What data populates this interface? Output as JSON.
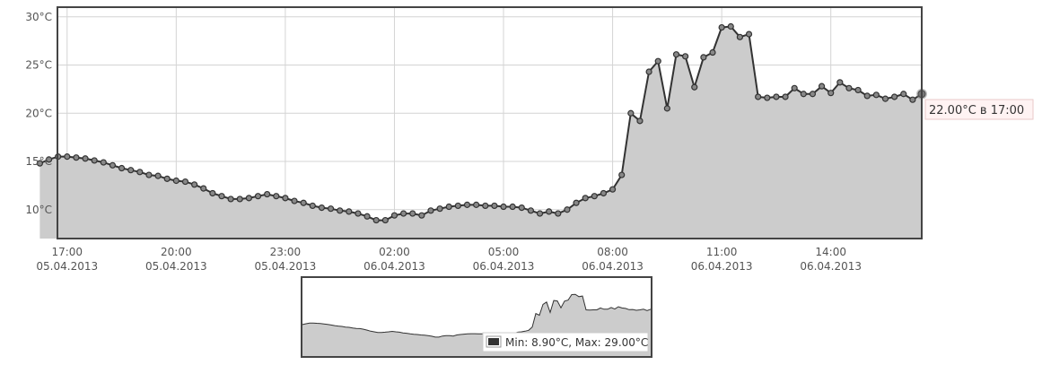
{
  "chart_data": {
    "type": "area",
    "title": "",
    "xlabel": "",
    "ylabel": "",
    "y_unit": "°C",
    "ylim": [
      7,
      31
    ],
    "y_ticks": [
      "10°C",
      "15°C",
      "20°C",
      "25°C",
      "30°C"
    ],
    "y_tick_values": [
      10,
      15,
      20,
      25,
      30
    ],
    "x_ticks": [
      {
        "time": "17:00",
        "date": "05.04.2013"
      },
      {
        "time": "20:00",
        "date": "05.04.2013"
      },
      {
        "time": "23:00",
        "date": "05.04.2013"
      },
      {
        "time": "02:00",
        "date": "06.04.2013"
      },
      {
        "time": "05:00",
        "date": "06.04.2013"
      },
      {
        "time": "08:00",
        "date": "06.04.2013"
      },
      {
        "time": "11:00",
        "date": "06.04.2013"
      },
      {
        "time": "14:00",
        "date": "06.04.2013"
      }
    ],
    "x_range": [
      "05.04.2013 16:15",
      "06.04.2013 16:00"
    ],
    "grid": true,
    "interval_minutes": 15,
    "series": [
      {
        "values": [
          14.8,
          15.2,
          15.5,
          15.5,
          15.4,
          15.3,
          15.1,
          14.9,
          14.6,
          14.3,
          14.1,
          13.9,
          13.6,
          13.5,
          13.2,
          13.0,
          12.9,
          12.6,
          12.2,
          11.7,
          11.4,
          11.1,
          11.1,
          11.2,
          11.4,
          11.6,
          11.4,
          11.2,
          10.9,
          10.7,
          10.4,
          10.2,
          10.1,
          9.9,
          9.8,
          9.6,
          9.3,
          8.9,
          8.9,
          9.4,
          9.6,
          9.6,
          9.4,
          9.9,
          10.1,
          10.3,
          10.4,
          10.5,
          10.5,
          10.4,
          10.4,
          10.3,
          10.3,
          10.2,
          9.9,
          9.6,
          9.8,
          9.6,
          10.0,
          10.7,
          11.2,
          11.4,
          11.7,
          12.1,
          13.6,
          20.0,
          19.2,
          24.3,
          25.4,
          20.5,
          26.1,
          25.9,
          22.7,
          25.8,
          26.3,
          28.9,
          29.0,
          27.9,
          28.2,
          21.7,
          21.6,
          21.7,
          21.7,
          22.6,
          22.0,
          22.0,
          22.8,
          22.1,
          23.2,
          22.6,
          22.4,
          21.8,
          21.9,
          21.5,
          21.7,
          22.0,
          21.4,
          22.0
        ]
      }
    ],
    "tooltip": "22.00°C в 17:00"
  },
  "overview": {
    "legend": "Min: 8.90°C, Max: 29.00°C",
    "legend_color": "#333333"
  },
  "colors": {
    "line": "#333333",
    "area": "#cccccc",
    "grid": "#d4d4d4",
    "frame": "#444444",
    "tooltip_bg": "#fff3f3",
    "tooltip_border": "#e9c9c9"
  }
}
